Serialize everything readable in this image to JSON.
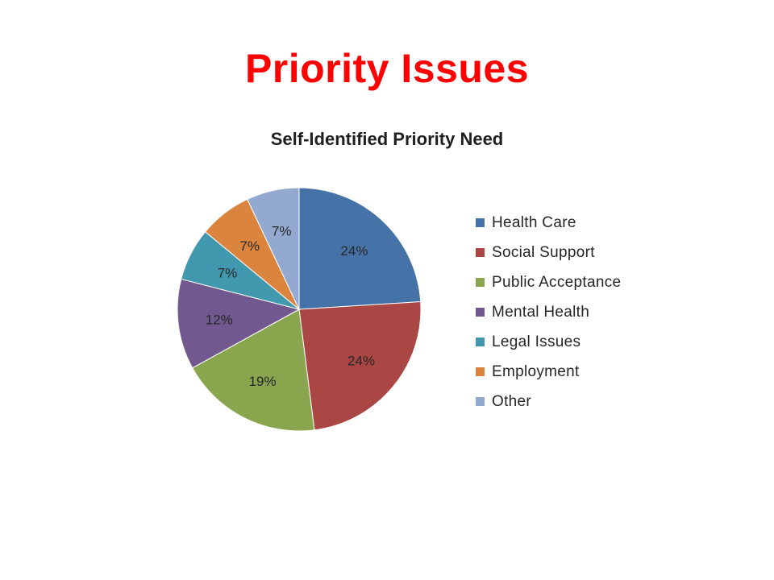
{
  "slide": {
    "title": "Priority Issues"
  },
  "chart_data": {
    "type": "pie",
    "title": "Self-Identified Priority Need",
    "categories": [
      "Health Care",
      "Social Support",
      "Public Acceptance",
      "Mental Health",
      "Legal Issues",
      "Employment",
      "Other"
    ],
    "values": [
      24,
      24,
      19,
      12,
      7,
      7,
      7
    ],
    "data_labels": [
      "24%",
      "24%",
      "19%",
      "12%",
      "7%",
      "7%",
      "7%"
    ],
    "colors": [
      "#4572a7",
      "#aa4643",
      "#89a54e",
      "#71588f",
      "#4198af",
      "#db843d",
      "#93a9cf"
    ],
    "legend_position": "right"
  }
}
